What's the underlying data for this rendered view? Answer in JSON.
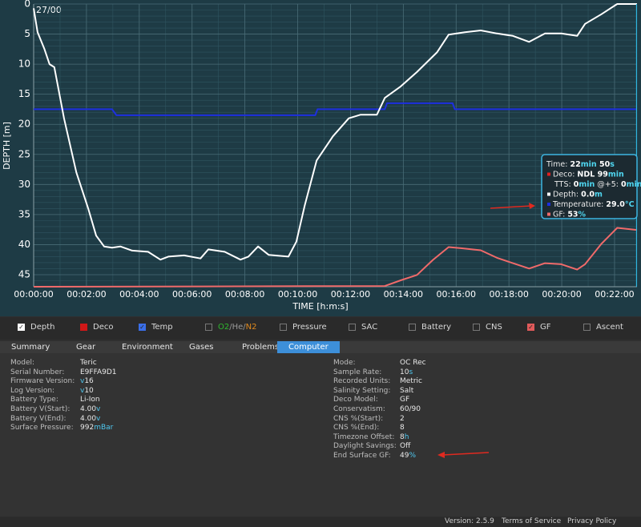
{
  "chart_data": {
    "type": "line",
    "corner_label": "27/00",
    "xlabel": "TIME [h:m:s]",
    "ylabel": "DEPTH [m]",
    "xlim": [
      0,
      1371
    ],
    "ylim": [
      0,
      47
    ],
    "y_inverted": true,
    "xticks": [
      {
        "value": 0,
        "label": "00:00:00"
      },
      {
        "value": 120,
        "label": "00:02:00"
      },
      {
        "value": 240,
        "label": "00:04:00"
      },
      {
        "value": 360,
        "label": "00:06:00"
      },
      {
        "value": 480,
        "label": "00:08:00"
      },
      {
        "value": 600,
        "label": "00:10:00"
      },
      {
        "value": 720,
        "label": "00:12:00"
      },
      {
        "value": 840,
        "label": "00:14:00"
      },
      {
        "value": 960,
        "label": "00:16:00"
      },
      {
        "value": 1080,
        "label": "00:18:00"
      },
      {
        "value": 1200,
        "label": "00:20:00"
      },
      {
        "value": 1320,
        "label": "00:22:00"
      }
    ],
    "yticks": [
      0,
      5,
      10,
      15,
      20,
      25,
      30,
      35,
      40,
      45
    ],
    "xminor_ticks": [
      60,
      180,
      300,
      420,
      540,
      660,
      780,
      900,
      1020,
      1140,
      1260
    ],
    "yminor_ticks": [
      1,
      2,
      3,
      4,
      6,
      7,
      8,
      9,
      11,
      12,
      13,
      14,
      16,
      17,
      18,
      19,
      21,
      22,
      23,
      24,
      26,
      27,
      28,
      29,
      31,
      32,
      33,
      34,
      36,
      37,
      38,
      39,
      41,
      42,
      43,
      44,
      46,
      47
    ],
    "grid": true,
    "cursor_x": 1370,
    "series": [
      {
        "name": "Depth",
        "color": "#ffffff",
        "x": [
          0,
          9,
          24,
          36,
          47,
          69,
          97,
          124,
          142,
          160,
          178,
          197,
          224,
          260,
          288,
          306,
          342,
          379,
          397,
          434,
          470,
          488,
          510,
          534,
          579,
          597,
          616,
          643,
          680,
          716,
          743,
          780,
          798,
          834,
          871,
          917,
          943,
          980,
          1016,
          1053,
          1089,
          1126,
          1162,
          1199,
          1235,
          1253,
          1290,
          1326,
          1371
        ],
        "values": [
          0.7,
          4.7,
          7.4,
          10,
          10.5,
          19,
          28,
          34,
          38.5,
          40.3,
          40.5,
          40.3,
          41,
          41.2,
          42.5,
          42,
          41.8,
          42.3,
          40.8,
          41.2,
          42.5,
          42,
          40.3,
          41.7,
          42,
          39.5,
          33.5,
          26,
          22,
          19,
          18.4,
          18.4,
          15.6,
          13.7,
          11.3,
          8,
          5.1,
          4.7,
          4.4,
          4.9,
          5.3,
          6.3,
          4.9,
          4.9,
          5.3,
          3.3,
          1.7,
          0,
          0
        ]
      },
      {
        "name": "Temp",
        "color": "#1d2fe0",
        "ylim": [
          -0.5,
          46.5
        ],
        "x": [
          0,
          178,
          188,
          640,
          645,
          798,
          803,
          952,
          957,
          1371
        ],
        "values": [
          29,
          29,
          28,
          28,
          29,
          29,
          30,
          30,
          29,
          29
        ]
      },
      {
        "name": "GF",
        "color": "#f06a6a",
        "ylim": [
          0,
          264
        ],
        "x": [
          0,
          798,
          834,
          871,
          907,
          943,
          971,
          1016,
          1053,
          1089,
          1126,
          1162,
          1199,
          1235,
          1253,
          1290,
          1326,
          1371
        ],
        "values": [
          0,
          0.7,
          6,
          11,
          25,
          37,
          36,
          34,
          27,
          22,
          17,
          22,
          21,
          16,
          21,
          40,
          55,
          53
        ]
      }
    ]
  },
  "tooltip": {
    "lines": [
      [
        {
          "text": "Time: ",
          "style": "label"
        },
        {
          "text": "22",
          "style": "value"
        },
        {
          "text": "min ",
          "style": "unit"
        },
        {
          "text": "50",
          "style": "value"
        },
        {
          "text": "s",
          "style": "unit"
        }
      ],
      [
        {
          "text": "Deco: ",
          "style": "label",
          "marker": "#e02020"
        },
        {
          "text": "NDL 99",
          "style": "value"
        },
        {
          "text": "min",
          "style": "unit"
        }
      ],
      [
        {
          "text": "TTS: ",
          "style": "label",
          "indent": true
        },
        {
          "text": "0",
          "style": "value"
        },
        {
          "text": "min",
          "style": "unit"
        },
        {
          "text": " @+5: ",
          "style": "label"
        },
        {
          "text": "0",
          "style": "value"
        },
        {
          "text": "min",
          "style": "unit"
        }
      ],
      [
        {
          "text": "Depth: ",
          "style": "label",
          "marker": "#ffffff"
        },
        {
          "text": "0.0",
          "style": "value"
        },
        {
          "text": "m",
          "style": "unit"
        }
      ],
      [
        {
          "text": "Temperature: ",
          "style": "label",
          "marker": "#1d2fe0"
        },
        {
          "text": "29.0",
          "style": "value"
        },
        {
          "text": "°C",
          "style": "unit"
        }
      ],
      [
        {
          "text": "GF: ",
          "style": "label",
          "marker": "#f06a6a"
        },
        {
          "text": "53",
          "style": "value"
        },
        {
          "text": "%",
          "style": "unit"
        }
      ]
    ]
  },
  "toggles": [
    {
      "parts": [
        {
          "text": "Depth"
        }
      ],
      "checked": true,
      "box_color": "#ffffff"
    },
    {
      "parts": [
        {
          "text": "Deco"
        }
      ],
      "checked": false,
      "box_color": "#d01818"
    },
    {
      "parts": [
        {
          "text": "Temp"
        }
      ],
      "checked": true,
      "box_color": "#3a6ee8"
    },
    {
      "parts": [
        {
          "text": "O2",
          "color": "#2eb82e"
        },
        {
          "text": "/He/",
          "color": "#9a9a9a"
        },
        {
          "text": "N2",
          "color": "#e08a1e"
        }
      ],
      "checked": false,
      "box_color": null
    },
    {
      "parts": [
        {
          "text": "Pressure"
        }
      ],
      "checked": false,
      "box_color": null
    },
    {
      "parts": [
        {
          "text": "SAC"
        }
      ],
      "checked": false,
      "box_color": null
    },
    {
      "parts": [
        {
          "text": "Battery"
        }
      ],
      "checked": false,
      "box_color": null
    },
    {
      "parts": [
        {
          "text": "CNS"
        }
      ],
      "checked": false,
      "box_color": null
    },
    {
      "parts": [
        {
          "text": "GF"
        }
      ],
      "checked": true,
      "box_color": "#e05a5a"
    },
    {
      "parts": [
        {
          "text": "Ascent"
        }
      ],
      "checked": false,
      "box_color": null
    }
  ],
  "tabs": {
    "items": [
      "Summary",
      "Gear",
      "Environment",
      "Gases",
      "Problems",
      "Computer"
    ],
    "active": 5
  },
  "info_left": [
    {
      "label": "Model:",
      "value": "Teric"
    },
    {
      "label": "Serial Number:",
      "value": "E9FFA9D1"
    },
    {
      "label": "Firmware Version:",
      "value": "16",
      "unit": "v",
      "unit_before": true
    },
    {
      "label": "Log Version:",
      "value": "10",
      "unit": "v",
      "unit_before": true
    },
    {
      "label": "Battery Type:",
      "value": "Li-Ion"
    },
    {
      "label": "Battery V(Start):",
      "value": "4.00",
      "unit": "v"
    },
    {
      "label": "Battery V(End):",
      "value": "4.00",
      "unit": "v"
    },
    {
      "label": "Surface Pressure:",
      "value": "992",
      "unit": "mBar"
    }
  ],
  "info_right": [
    {
      "label": "Mode:",
      "value": "OC Rec"
    },
    {
      "label": "Sample Rate:",
      "value": "10",
      "unit": "s"
    },
    {
      "label": "Recorded Units:",
      "value": "Metric"
    },
    {
      "label": "Salinity Setting:",
      "value": "Salt"
    },
    {
      "label": "Deco Model:",
      "value": "GF"
    },
    {
      "label": "Conservatism:",
      "value": "60/90"
    },
    {
      "label": "CNS %(Start):",
      "value": "2"
    },
    {
      "label": "CNS %(End):",
      "value": "8"
    },
    {
      "label": "Timezone Offset:",
      "value": "8",
      "unit": "h"
    },
    {
      "label": "Daylight Savings:",
      "value": "Off"
    },
    {
      "label": "End Surface GF:",
      "value": "49",
      "unit": "%"
    }
  ],
  "footer": {
    "version": "Version: 2.5.9",
    "terms": "Terms of Service",
    "privacy": "Privacy Policy"
  }
}
